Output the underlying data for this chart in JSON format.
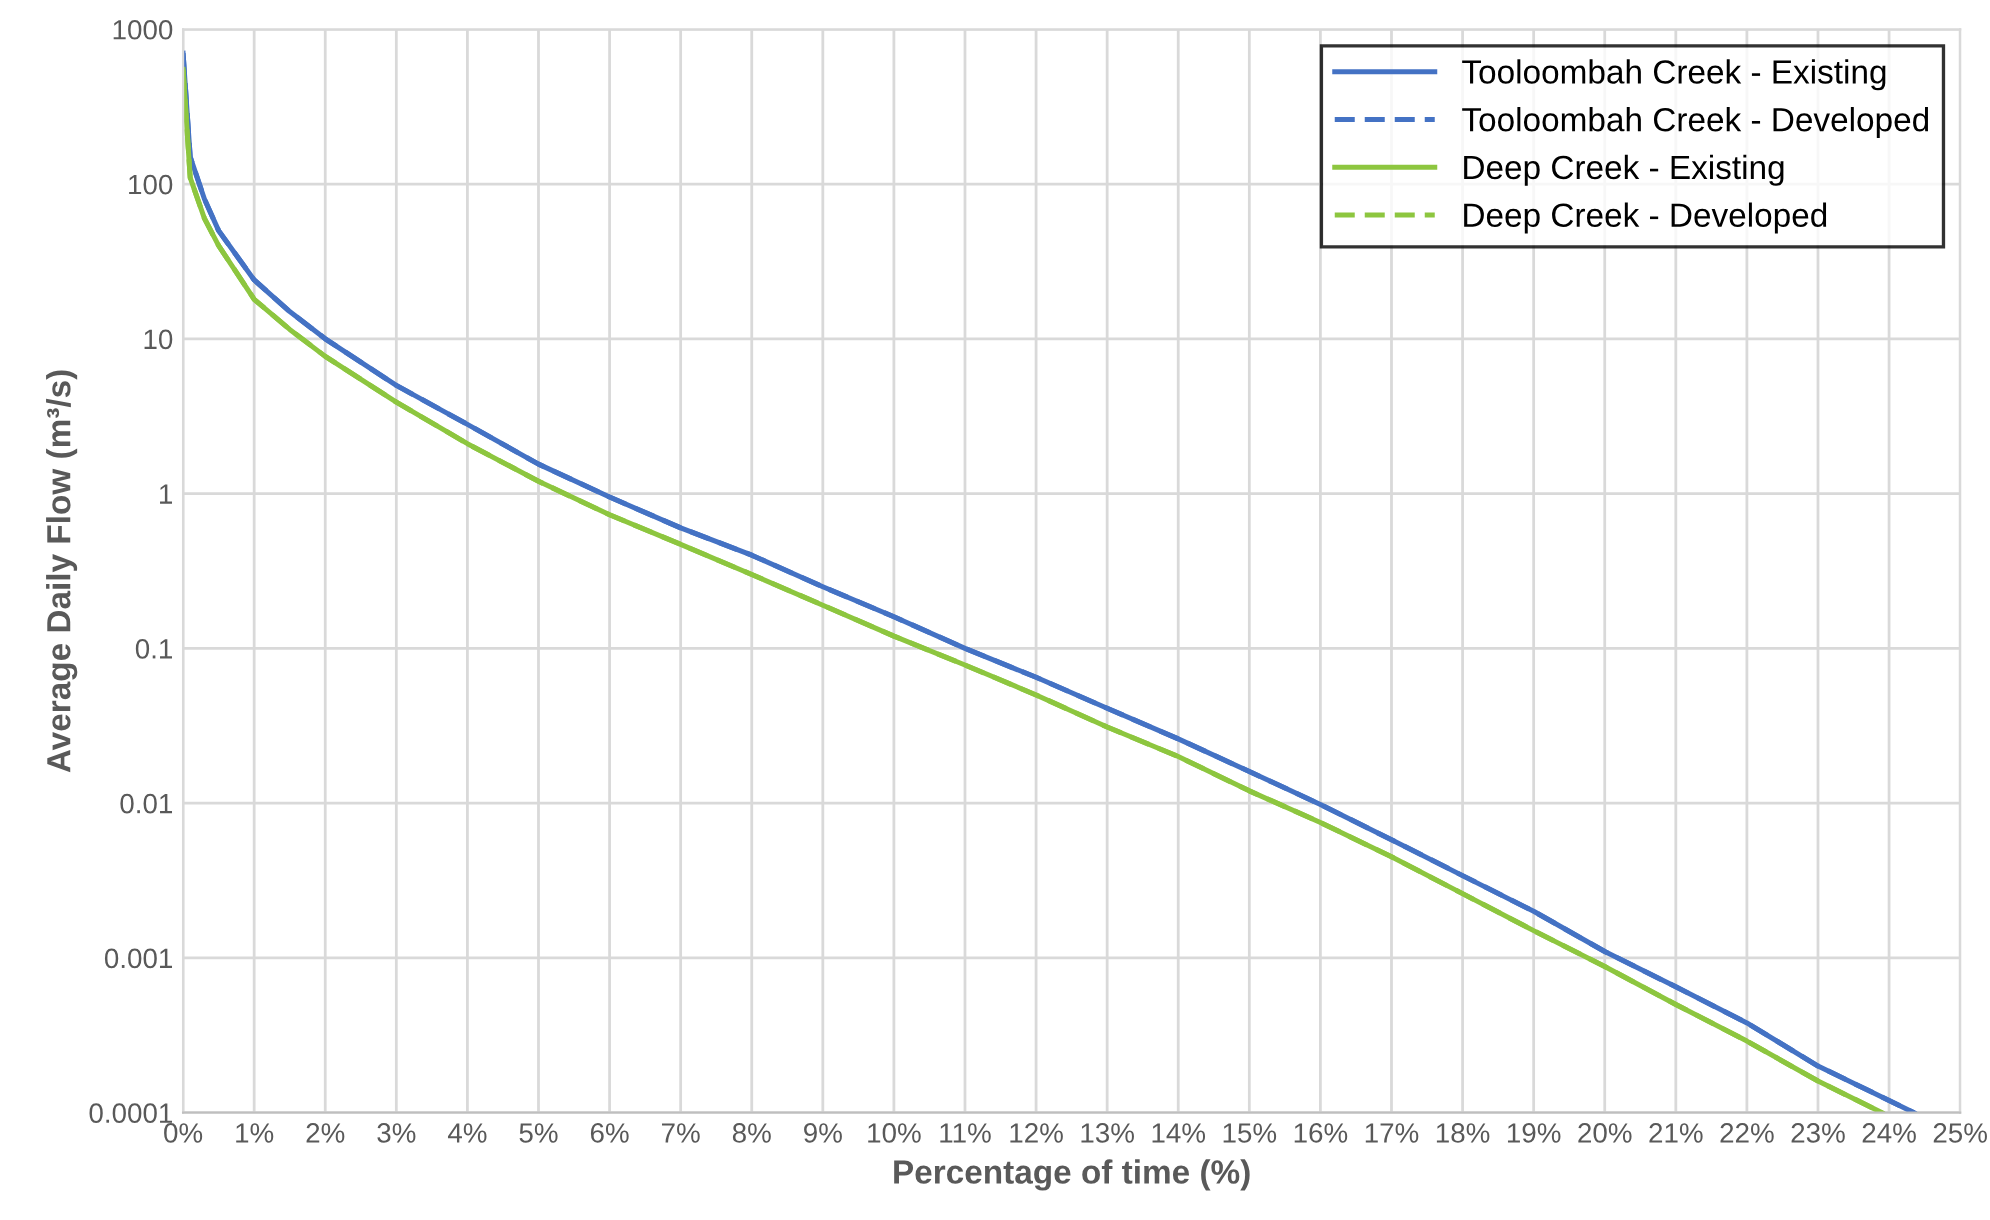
{
  "chart_data": {
    "type": "line",
    "xlabel": "Percentage of time (%)",
    "ylabel": "Average Daily Flow (m³/s)",
    "log": "y",
    "grid": true,
    "legend": "top right",
    "marker": "none",
    "x": [
      0,
      0.1,
      0.3,
      0.5,
      1,
      1.5,
      2,
      3,
      4,
      5,
      6,
      7,
      8,
      9,
      10,
      11,
      12,
      13,
      14,
      15,
      16,
      17,
      18,
      19,
      20,
      21,
      22,
      23,
      24,
      24.35
    ],
    "series": [
      {
        "name": "Tooloombah Creek - Existing",
        "color": "#4472c4",
        "line_style": "solid",
        "values": [
          700,
          150,
          80,
          50,
          24,
          15,
          10,
          5,
          2.8,
          1.55,
          0.95,
          0.6,
          0.4,
          0.25,
          0.16,
          0.1,
          0.065,
          0.041,
          0.026,
          0.016,
          0.0098,
          0.0058,
          0.0034,
          0.002,
          0.0011,
          0.00065,
          0.00038,
          0.0002,
          0.00012,
          0.0001
        ]
      },
      {
        "name": "Tooloombah Creek - Developed",
        "color": "#4472c4",
        "line_style": "dashed",
        "values": [
          700,
          150,
          80,
          50,
          24,
          15,
          10,
          5,
          2.8,
          1.55,
          0.95,
          0.6,
          0.4,
          0.25,
          0.16,
          0.1,
          0.065,
          0.041,
          0.026,
          0.016,
          0.0098,
          0.0058,
          0.0034,
          0.002,
          0.0011,
          0.00065,
          0.00038,
          0.0002,
          0.00012,
          0.0001
        ]
      },
      {
        "name": "Deep Creek - Existing",
        "color": "#8dc63f",
        "line_style": "solid",
        "x": [
          0,
          0.1,
          0.3,
          0.5,
          1,
          1.5,
          2,
          3,
          4,
          5,
          6,
          7,
          8,
          9,
          10,
          11,
          12,
          13,
          14,
          15,
          16,
          17,
          18,
          19,
          20,
          21,
          22,
          23,
          23.9
        ],
        "values": [
          550,
          110,
          60,
          40,
          18,
          11.5,
          7.7,
          3.9,
          2.1,
          1.2,
          0.73,
          0.47,
          0.3,
          0.19,
          0.12,
          0.078,
          0.05,
          0.031,
          0.02,
          0.012,
          0.0075,
          0.0045,
          0.0026,
          0.0015,
          0.00088,
          0.0005,
          0.00029,
          0.00016,
          0.0001
        ]
      },
      {
        "name": "Deep Creek - Developed",
        "color": "#8dc63f",
        "line_style": "dashed",
        "x": [
          0,
          0.1,
          0.3,
          0.5,
          1,
          1.5,
          2,
          3,
          4,
          5,
          6,
          7,
          8,
          9,
          10,
          11,
          12,
          13,
          14,
          15,
          16,
          17,
          18,
          19,
          20,
          21,
          22,
          23,
          23.9
        ],
        "values": [
          550,
          110,
          60,
          40,
          18,
          11.5,
          7.7,
          3.9,
          2.1,
          1.2,
          0.73,
          0.47,
          0.3,
          0.19,
          0.12,
          0.078,
          0.05,
          0.031,
          0.02,
          0.012,
          0.0075,
          0.0045,
          0.0026,
          0.0015,
          0.00088,
          0.0005,
          0.00029,
          0.00016,
          0.0001
        ]
      }
    ],
    "xlim": [
      0,
      25
    ],
    "xticks": [
      {
        "value": 0,
        "label": "0%"
      },
      {
        "value": 1,
        "label": "1%"
      },
      {
        "value": 2,
        "label": "2%"
      },
      {
        "value": 3,
        "label": "3%"
      },
      {
        "value": 4,
        "label": "4%"
      },
      {
        "value": 5,
        "label": "5%"
      },
      {
        "value": 6,
        "label": "6%"
      },
      {
        "value": 7,
        "label": "7%"
      },
      {
        "value": 8,
        "label": "8%"
      },
      {
        "value": 9,
        "label": "9%"
      },
      {
        "value": 10,
        "label": "10%"
      },
      {
        "value": 11,
        "label": "11%"
      },
      {
        "value": 12,
        "label": "12%"
      },
      {
        "value": 13,
        "label": "13%"
      },
      {
        "value": 14,
        "label": "14%"
      },
      {
        "value": 15,
        "label": "15%"
      },
      {
        "value": 16,
        "label": "16%"
      },
      {
        "value": 17,
        "label": "17%"
      },
      {
        "value": 18,
        "label": "18%"
      },
      {
        "value": 19,
        "label": "19%"
      },
      {
        "value": 20,
        "label": "20%"
      },
      {
        "value": 21,
        "label": "21%"
      },
      {
        "value": 22,
        "label": "22%"
      },
      {
        "value": 23,
        "label": "23%"
      },
      {
        "value": 24,
        "label": "24%"
      },
      {
        "value": 25,
        "label": "25%"
      }
    ],
    "ylim": [
      0.0001,
      1000
    ],
    "yticks": [
      0.0001,
      0.001,
      0.01,
      0.1,
      1,
      10,
      100,
      1000
    ]
  }
}
